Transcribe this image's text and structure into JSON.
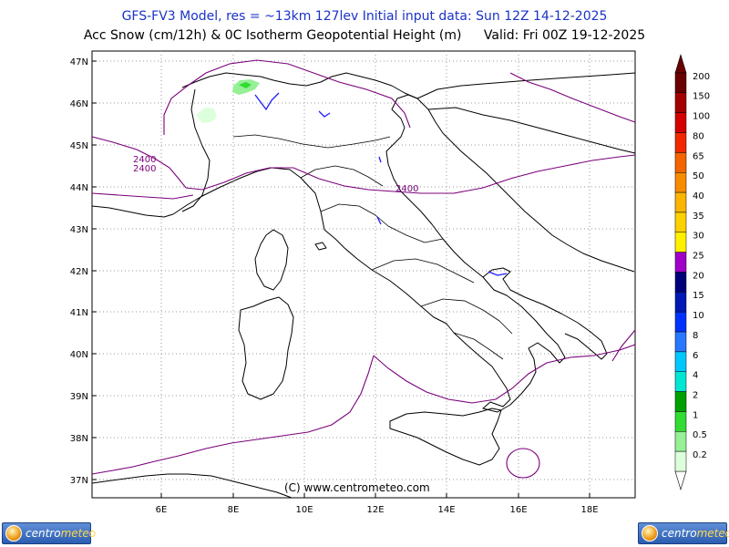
{
  "header": {
    "title_line1": "GFS-FV3 Model, res = ~13km 127lev    Initial input data: Sun 12Z 14-12-2025",
    "title_line2_left": "Acc Snow (cm/12h) & 0C Isotherm Geopotential Height (m)",
    "title_line2_right": "Valid: Fri 00Z 19-12-2025"
  },
  "map": {
    "lat_labels": [
      "47N",
      "46N",
      "45N",
      "44N",
      "43N",
      "42N",
      "41N",
      "40N",
      "39N",
      "38N",
      "37N"
    ],
    "lon_labels": [
      "6E",
      "8E",
      "10E",
      "12E",
      "14E",
      "16E",
      "18E"
    ],
    "contour_labels": [
      "2400",
      "2400",
      "2400"
    ],
    "copyright": "(C) www.centrometeo.com"
  },
  "legend": {
    "levels": [
      "200",
      "150",
      "100",
      "80",
      "65",
      "50",
      "40",
      "35",
      "30",
      "25",
      "20",
      "15",
      "10",
      "8",
      "6",
      "4",
      "2",
      "1",
      "0.5",
      "0.2"
    ],
    "colors": [
      "#6b0000",
      "#a40000",
      "#d40000",
      "#f02800",
      "#f46400",
      "#f88c00",
      "#fbb400",
      "#fdd000",
      "#fff000",
      "#a000c8",
      "#00007a",
      "#0018b4",
      "#0032ff",
      "#2878ff",
      "#00c8ff",
      "#00e6d2",
      "#00a000",
      "#32dc32",
      "#96f096",
      "#dcffdc"
    ]
  },
  "branding": {
    "logo_brand_a": "centro",
    "logo_brand_b": "meteo"
  }
}
